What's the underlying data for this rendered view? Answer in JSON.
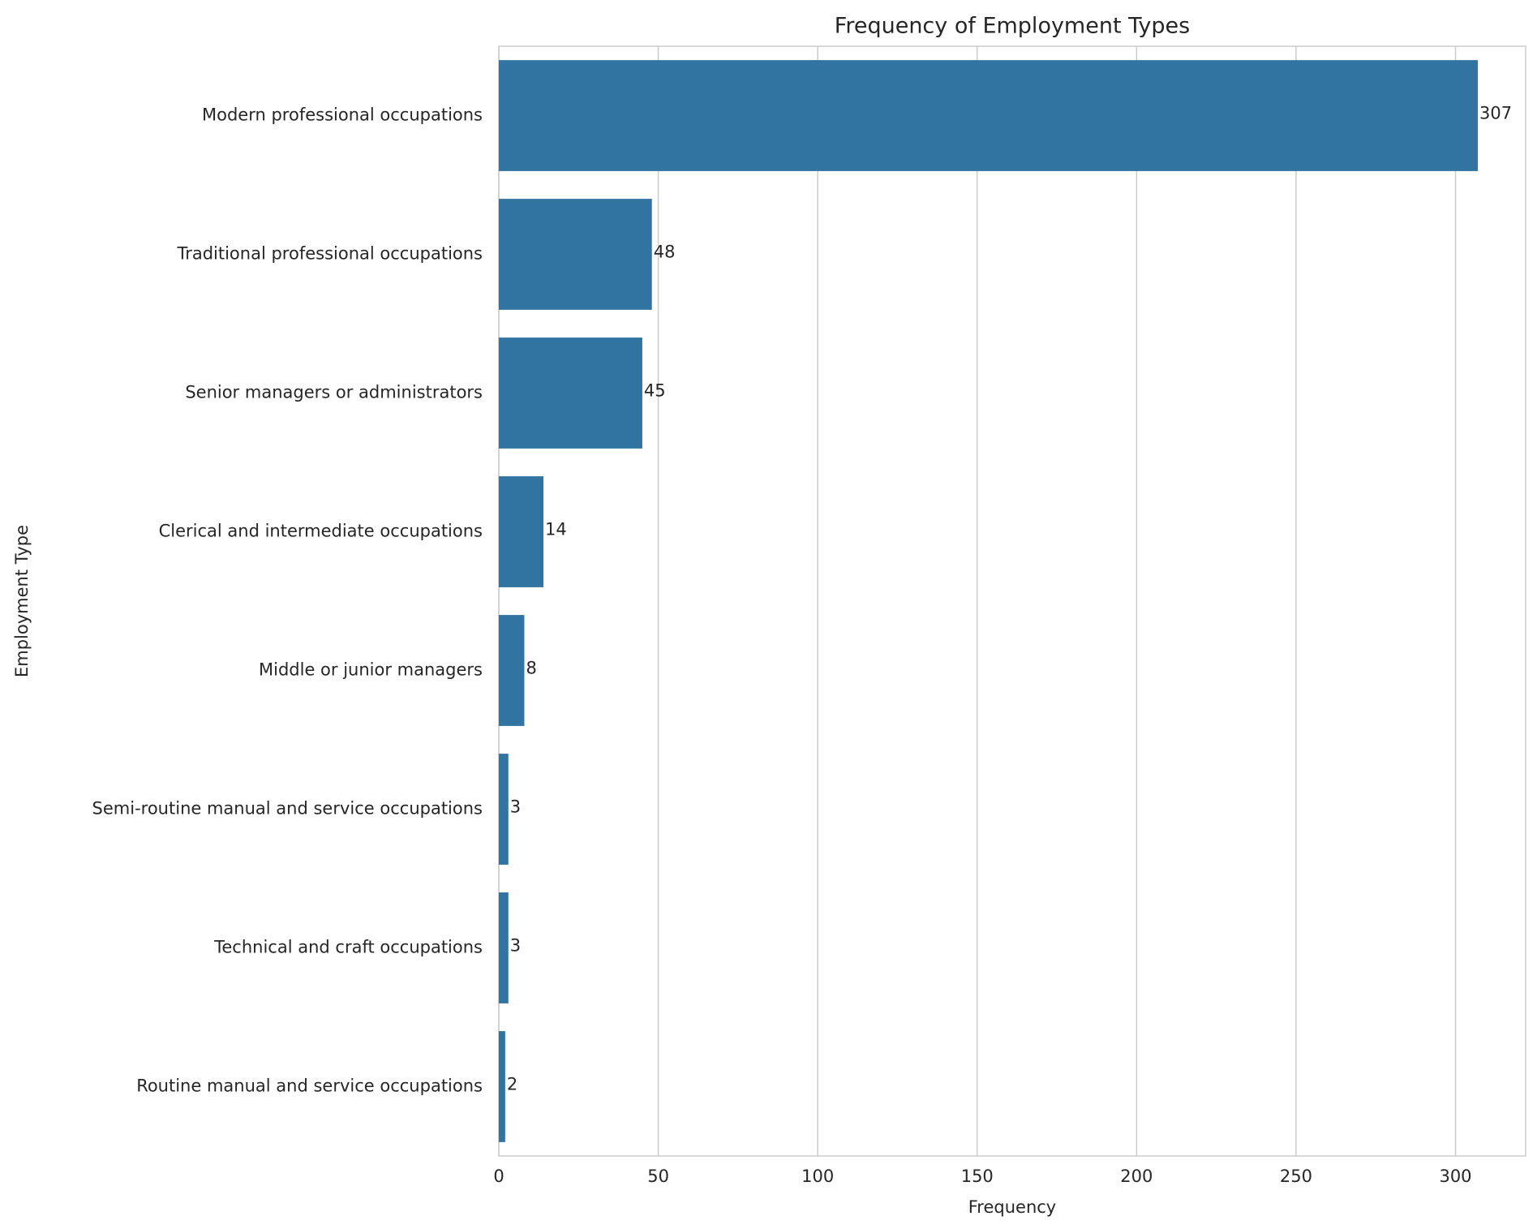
{
  "chart_data": {
    "type": "barh",
    "title": "Frequency of Employment Types",
    "x_label": "Frequency",
    "y_label": "Employment Type",
    "categories": [
      "Modern professional occupations",
      "Traditional professional occupations",
      "Senior managers or administrators",
      "Clerical and intermediate occupations",
      "Middle or junior managers",
      "Semi-routine manual and service occupations",
      "Technical and craft occupations",
      "Routine manual and service occupations"
    ],
    "values": [
      307,
      48,
      45,
      14,
      8,
      3,
      3,
      2
    ],
    "color": "#3274a1",
    "xlim": [
      0,
      322
    ],
    "xticks": [
      0,
      50,
      100,
      150,
      200,
      250,
      300
    ],
    "grid": true
  }
}
